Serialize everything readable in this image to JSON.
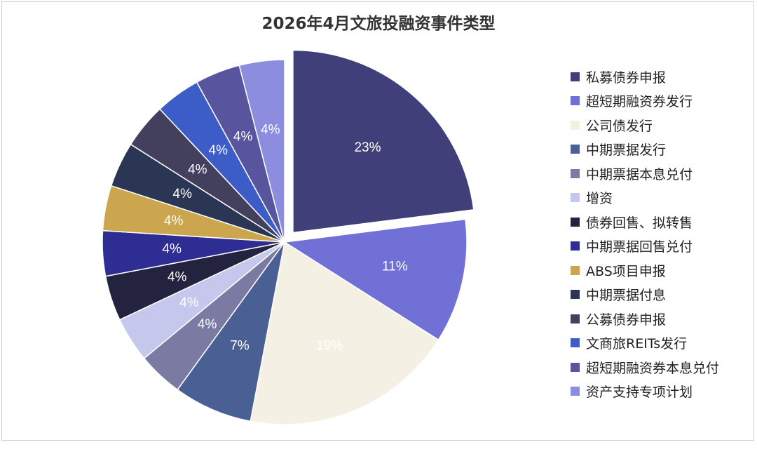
{
  "chart_data": {
    "type": "pie",
    "title": "2026年4月文旅投融资事件类型",
    "legend_position": "right",
    "exploded_slice": "私募债券申报",
    "slices": [
      {
        "label": "私募债券申报",
        "value": 23,
        "display": "23%",
        "color": "#403f7a",
        "label_color": "#ffffff"
      },
      {
        "label": "超短期融资券发行",
        "value": 11,
        "display": "11%",
        "color": "#7070d6",
        "label_color": "#ffffff"
      },
      {
        "label": "公司债发行",
        "value": 19,
        "display": "19%",
        "color": "#f5f0e4",
        "label_color": "#ffffff"
      },
      {
        "label": "中期票据发行",
        "value": 7,
        "display": "7%",
        "color": "#4a5f94",
        "label_color": "#ffffff"
      },
      {
        "label": "中期票据本息兑付",
        "value": 4,
        "display": "4%",
        "color": "#7b7aa2",
        "label_color": "#ffffff"
      },
      {
        "label": "增资",
        "value": 4,
        "display": "4%",
        "color": "#c5c8ec",
        "label_color": "#ffffff"
      },
      {
        "label": "债券回售、拟转售",
        "value": 4,
        "display": "4%",
        "color": "#23223f",
        "label_color": "#ffffff"
      },
      {
        "label": "中期票据回售兑付",
        "value": 4,
        "display": "4%",
        "color": "#2e2d93",
        "label_color": "#ffffff"
      },
      {
        "label": "ABS项目申报",
        "value": 4,
        "display": "4%",
        "color": "#cca64e",
        "label_color": "#ffffff"
      },
      {
        "label": "中期票据付息",
        "value": 4,
        "display": "4%",
        "color": "#2a3653",
        "label_color": "#ffffff"
      },
      {
        "label": "公募债券申报",
        "value": 4,
        "display": "4%",
        "color": "#43405e",
        "label_color": "#ffffff"
      },
      {
        "label": "文商旅REITs发行",
        "value": 4,
        "display": "4%",
        "color": "#3c5cc8",
        "label_color": "#ffffff"
      },
      {
        "label": "超短期融资券本息兑付",
        "value": 4,
        "display": "4%",
        "color": "#58549e",
        "label_color": "#ffffff"
      },
      {
        "label": "资产支持专项计划",
        "value": 4,
        "display": "4%",
        "color": "#8d8de0",
        "label_color": "#ffffff"
      }
    ]
  }
}
